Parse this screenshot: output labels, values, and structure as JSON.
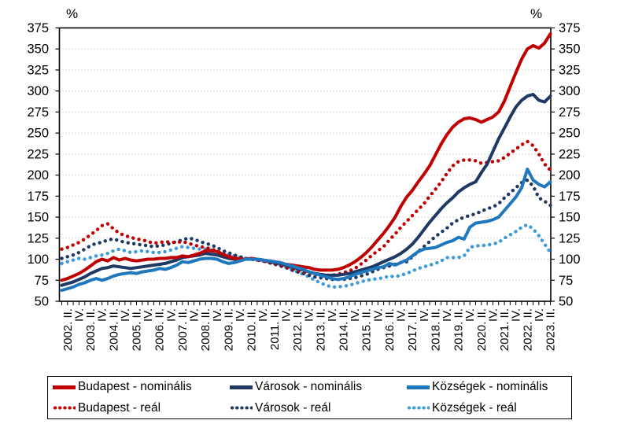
{
  "chart_data": {
    "type": "line",
    "title": "",
    "unit": "%",
    "y_axis": {
      "min": 50,
      "max": 375,
      "step": 25,
      "side": "both",
      "tick_labels": [
        "50",
        "75",
        "100",
        "125",
        "150",
        "175",
        "200",
        "225",
        "250",
        "275",
        "300",
        "325",
        "350",
        "375"
      ]
    },
    "x_axis": {
      "tick_label_start_index": 1,
      "tick_label_every": 2,
      "points_per_series": 86,
      "tick_labels": [
        "2002. II.",
        "IV.",
        "2003. II.",
        "IV.",
        "2004. II.",
        "IV.",
        "2005. II.",
        "IV.",
        "2006. II.",
        "IV.",
        "2007. II.",
        "IV.",
        "2008. II.",
        "IV.",
        "2009. II.",
        "IV.",
        "2010. II.",
        "IV.",
        "2011. II.",
        "IV.",
        "2012. II.",
        "IV.",
        "2013. II.",
        "IV.",
        "2014. II.",
        "IV.",
        "2015. II.",
        "IV.",
        "2016. II.",
        "IV.",
        "2017. II.",
        "IV.",
        "2018. II.",
        "IV.",
        "2019. II.",
        "IV.",
        "2020. II.",
        "IV.",
        "2021. II.",
        "IV.",
        "2022. II.",
        "IV.",
        "2023. II."
      ]
    },
    "grid": "horizontal-dotted",
    "legend_position": "bottom",
    "series": [
      {
        "name": "Budapest - nominális",
        "color": "#C00000",
        "style": "solid",
        "values": [
          75,
          77,
          80,
          83,
          87,
          92,
          97,
          100,
          98,
          102,
          99,
          101,
          99,
          98,
          99,
          100,
          100,
          101,
          101,
          102,
          102,
          104,
          103,
          105,
          107,
          110,
          110,
          109,
          106,
          103,
          101,
          100,
          100,
          101,
          100,
          99,
          98,
          97,
          96,
          94,
          93,
          92,
          91,
          90,
          88,
          87,
          87,
          87,
          88,
          90,
          93,
          97,
          102,
          108,
          115,
          123,
          131,
          140,
          150,
          163,
          174,
          182,
          192,
          201,
          211,
          224,
          237,
          248,
          257,
          263,
          267,
          268,
          266,
          263,
          266,
          269,
          275,
          288,
          305,
          322,
          338,
          350,
          354,
          351,
          357,
          368
        ]
      },
      {
        "name": "Városok - nominális",
        "color": "#1F3864",
        "style": "solid",
        "values": [
          69,
          71,
          73,
          76,
          79,
          83,
          86,
          89,
          90,
          92,
          91,
          90,
          89,
          90,
          91,
          92,
          93,
          94,
          95,
          97,
          99,
          102,
          103,
          104,
          105,
          107,
          106,
          105,
          103,
          101,
          100,
          100,
          100,
          100,
          100,
          99,
          97,
          96,
          95,
          93,
          91,
          89,
          87,
          85,
          83,
          82,
          81,
          81,
          81,
          82,
          83,
          85,
          87,
          89,
          91,
          94,
          97,
          100,
          103,
          107,
          112,
          118,
          126,
          135,
          144,
          152,
          160,
          167,
          173,
          180,
          185,
          189,
          192,
          203,
          213,
          228,
          243,
          256,
          269,
          281,
          289,
          294,
          296,
          289,
          287,
          294
        ]
      },
      {
        "name": "Községek - nominális",
        "color": "#1F78BE",
        "style": "solid",
        "values": [
          63,
          65,
          67,
          70,
          72,
          75,
          77,
          75,
          77,
          80,
          82,
          83,
          84,
          83,
          85,
          86,
          87,
          89,
          88,
          90,
          93,
          97,
          96,
          98,
          100,
          101,
          101,
          100,
          97,
          95,
          96,
          98,
          100,
          100,
          100,
          99,
          98,
          97,
          96,
          94,
          92,
          90,
          88,
          85,
          83,
          81,
          79,
          77,
          76,
          77,
          79,
          82,
          84,
          86,
          88,
          90,
          91,
          95,
          93,
          96,
          99,
          104,
          109,
          112,
          113,
          114,
          117,
          120,
          122,
          126,
          124,
          138,
          143,
          144,
          145,
          147,
          150,
          158,
          166,
          174,
          185,
          207,
          194,
          189,
          186,
          192
        ]
      },
      {
        "name": "Budapest - reál",
        "color": "#C00000",
        "style": "dotted",
        "values": [
          112,
          114,
          117,
          120,
          124,
          129,
          134,
          140,
          142,
          136,
          131,
          128,
          126,
          124,
          123,
          121,
          119,
          120,
          121,
          120,
          120,
          121,
          119,
          117,
          115,
          114,
          112,
          110,
          106,
          104,
          102,
          101,
          100,
          100,
          99,
          98,
          96,
          95,
          93,
          91,
          89,
          87,
          85,
          84,
          83,
          82,
          81,
          81,
          82,
          84,
          86,
          89,
          94,
          99,
          105,
          110,
          115,
          123,
          130,
          138,
          145,
          152,
          159,
          166,
          175,
          183,
          192,
          202,
          211,
          216,
          218,
          218,
          217,
          214,
          215,
          216,
          217,
          221,
          226,
          231,
          236,
          240,
          235,
          225,
          213,
          206
        ]
      },
      {
        "name": "Városok - reál",
        "color": "#1F3864",
        "style": "dotted",
        "values": [
          101,
          103,
          105,
          108,
          112,
          116,
          119,
          120,
          123,
          124,
          122,
          120,
          119,
          118,
          117,
          116,
          115,
          116,
          117,
          119,
          121,
          123,
          125,
          124,
          121,
          119,
          117,
          114,
          110,
          108,
          105,
          103,
          101,
          100,
          99,
          98,
          96,
          94,
          92,
          90,
          87,
          85,
          83,
          81,
          79,
          78,
          77,
          76,
          76,
          76,
          77,
          78,
          80,
          82,
          85,
          88,
          90,
          92,
          94,
          96,
          97,
          103,
          109,
          115,
          121,
          127,
          132,
          137,
          143,
          147,
          150,
          152,
          154,
          157,
          160,
          162,
          166,
          173,
          179,
          185,
          191,
          194,
          187,
          173,
          169,
          164
        ]
      },
      {
        "name": "Községek - reál",
        "color": "#3D9BD9",
        "style": "dotted",
        "values": [
          95,
          97,
          99,
          101,
          100,
          102,
          104,
          105,
          107,
          110,
          112,
          110,
          108,
          109,
          110,
          109,
          108,
          108,
          109,
          111,
          113,
          115,
          114,
          113,
          112,
          112,
          111,
          109,
          106,
          105,
          104,
          102,
          101,
          100,
          99,
          98,
          97,
          95,
          93,
          91,
          88,
          85,
          82,
          79,
          75,
          72,
          69,
          67,
          67,
          68,
          69,
          71,
          73,
          75,
          76,
          77,
          78,
          80,
          79,
          81,
          83,
          86,
          89,
          91,
          93,
          95,
          98,
          102,
          102,
          102,
          104,
          114,
          116,
          116,
          117,
          118,
          120,
          125,
          129,
          133,
          138,
          141,
          136,
          128,
          118,
          108
        ]
      }
    ]
  }
}
